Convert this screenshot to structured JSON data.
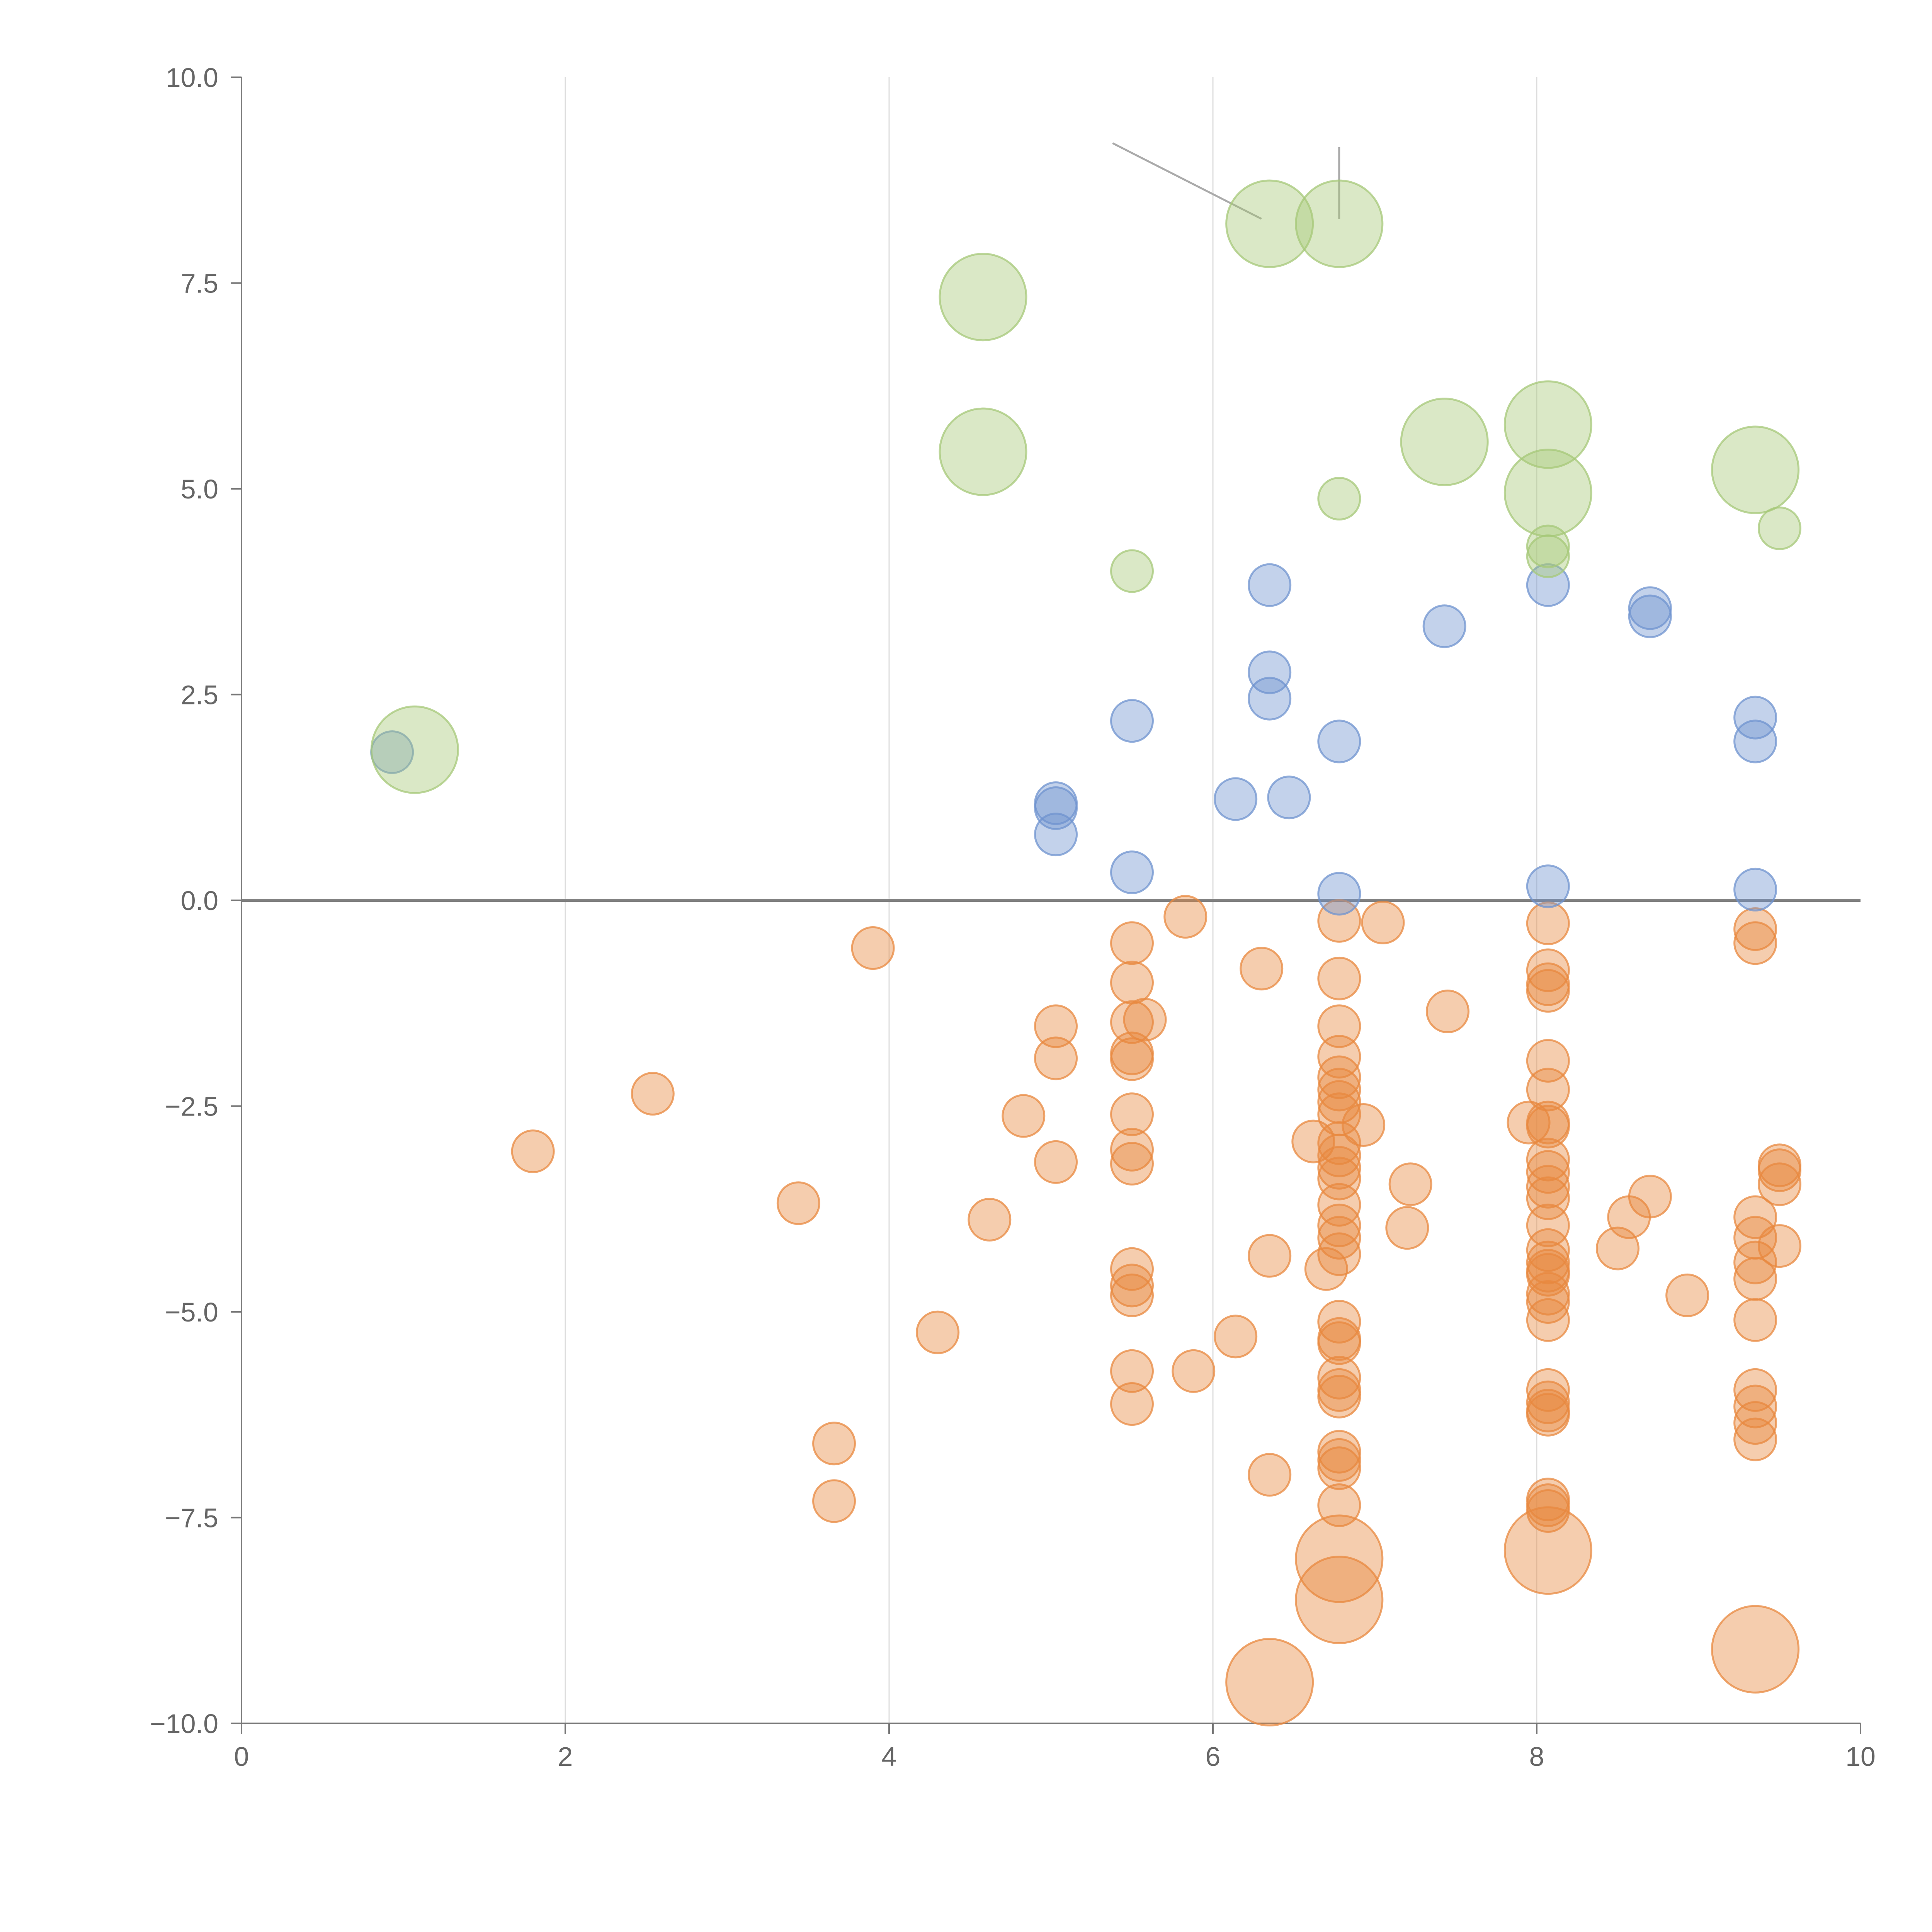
{
  "chart_data": {
    "type": "scatter",
    "title": "",
    "xlabel": "",
    "ylabel": "",
    "xlim": [
      0,
      10
    ],
    "ylim": [
      -10,
      10
    ],
    "grid": "vertical",
    "x_ticks": [
      0,
      2,
      4,
      6,
      8,
      10
    ],
    "x_tick_labels": [
      "0",
      "2",
      "4",
      "6",
      "8",
      "10"
    ],
    "y_ticks": [
      10,
      7.5,
      5,
      2.5,
      0,
      -2.5,
      -5,
      -7.5,
      -10
    ],
    "y_tick_labels": [
      "10.0",
      "7.5",
      "5.0",
      "2.5",
      "0.0",
      "−2.5",
      "−5.0",
      "−7.5",
      "−10.0"
    ],
    "series": [
      {
        "name": "orange",
        "color": "#e8883f",
        "points": [
          [
            1.8,
            -3.05,
            1
          ],
          [
            2.54,
            -2.35,
            1
          ],
          [
            3.44,
            -3.68,
            1
          ],
          [
            3.66,
            -6.6,
            1
          ],
          [
            3.66,
            -7.3,
            1
          ],
          [
            3.9,
            -0.58,
            1
          ],
          [
            4.3,
            -5.25,
            1
          ],
          [
            4.62,
            -3.88,
            1
          ],
          [
            4.83,
            -2.62,
            1
          ],
          [
            5.03,
            -1.53,
            1
          ],
          [
            5.03,
            -1.92,
            1
          ],
          [
            5.03,
            -3.18,
            1
          ],
          [
            5.5,
            -0.52,
            1
          ],
          [
            5.5,
            -1.0,
            1
          ],
          [
            5.5,
            -1.48,
            1
          ],
          [
            5.5,
            -1.86,
            1
          ],
          [
            5.5,
            -1.93,
            1
          ],
          [
            5.5,
            -2.6,
            1
          ],
          [
            5.5,
            -3.03,
            1
          ],
          [
            5.5,
            -3.2,
            1
          ],
          [
            5.5,
            -4.48,
            1
          ],
          [
            5.5,
            -4.68,
            1
          ],
          [
            5.5,
            -4.8,
            1
          ],
          [
            5.5,
            -5.72,
            1
          ],
          [
            5.5,
            -6.12,
            1
          ],
          [
            5.58,
            -1.45,
            1
          ],
          [
            5.83,
            -0.2,
            1
          ],
          [
            5.88,
            -5.72,
            1
          ],
          [
            6.14,
            -5.3,
            1
          ],
          [
            6.3,
            -0.83,
            1
          ],
          [
            6.35,
            -4.32,
            1
          ],
          [
            6.35,
            -6.98,
            1
          ],
          [
            6.35,
            -9.5,
            2.5
          ],
          [
            6.62,
            -2.93,
            1
          ],
          [
            6.7,
            -4.48,
            1
          ],
          [
            6.78,
            -0.25,
            1
          ],
          [
            6.78,
            -0.95,
            1
          ],
          [
            6.78,
            -1.53,
            1
          ],
          [
            6.78,
            -1.9,
            1
          ],
          [
            6.78,
            -2.15,
            1
          ],
          [
            6.78,
            -2.3,
            1
          ],
          [
            6.78,
            -2.45,
            1
          ],
          [
            6.78,
            -2.6,
            1
          ],
          [
            6.78,
            -2.95,
            1
          ],
          [
            6.78,
            -3.1,
            1
          ],
          [
            6.78,
            -3.25,
            1
          ],
          [
            6.78,
            -3.38,
            1
          ],
          [
            6.78,
            -3.7,
            1
          ],
          [
            6.78,
            -3.95,
            1
          ],
          [
            6.78,
            -4.1,
            1
          ],
          [
            6.78,
            -4.3,
            1
          ],
          [
            6.78,
            -5.12,
            1
          ],
          [
            6.78,
            -5.33,
            1
          ],
          [
            6.78,
            -5.38,
            1
          ],
          [
            6.78,
            -5.8,
            1
          ],
          [
            6.78,
            -5.95,
            1
          ],
          [
            6.78,
            -6.03,
            1
          ],
          [
            6.78,
            -6.7,
            1
          ],
          [
            6.78,
            -6.8,
            1
          ],
          [
            6.78,
            -6.9,
            1
          ],
          [
            6.78,
            -7.35,
            1
          ],
          [
            6.78,
            -8.0,
            2.5
          ],
          [
            6.78,
            -8.5,
            2.5
          ],
          [
            6.93,
            -2.73,
            1
          ],
          [
            7.05,
            -0.27,
            1
          ],
          [
            7.2,
            -3.98,
            1
          ],
          [
            7.22,
            -3.45,
            1
          ],
          [
            7.45,
            -1.35,
            1
          ],
          [
            7.95,
            -2.7,
            1
          ],
          [
            8.07,
            -0.28,
            1
          ],
          [
            8.07,
            -0.85,
            1
          ],
          [
            8.07,
            -1.02,
            1
          ],
          [
            8.07,
            -1.1,
            1
          ],
          [
            8.07,
            -1.95,
            1
          ],
          [
            8.07,
            -2.3,
            1
          ],
          [
            8.07,
            -2.7,
            1
          ],
          [
            8.07,
            -2.75,
            1
          ],
          [
            8.07,
            -3.15,
            1
          ],
          [
            8.07,
            -3.3,
            1
          ],
          [
            8.07,
            -3.48,
            1
          ],
          [
            8.07,
            -3.62,
            1
          ],
          [
            8.07,
            -3.95,
            1
          ],
          [
            8.07,
            -4.25,
            1
          ],
          [
            8.07,
            -4.4,
            1
          ],
          [
            8.07,
            -4.5,
            1
          ],
          [
            8.07,
            -4.55,
            1
          ],
          [
            8.07,
            -4.78,
            1
          ],
          [
            8.07,
            -4.88,
            1
          ],
          [
            8.07,
            -5.1,
            1
          ],
          [
            8.07,
            -5.95,
            1
          ],
          [
            8.07,
            -6.1,
            1
          ],
          [
            8.07,
            -6.2,
            1
          ],
          [
            8.07,
            -6.25,
            1
          ],
          [
            8.07,
            -7.28,
            1
          ],
          [
            8.07,
            -7.35,
            1
          ],
          [
            8.07,
            -7.42,
            1
          ],
          [
            8.07,
            -7.9,
            2.5
          ],
          [
            8.5,
            -4.23,
            1
          ],
          [
            8.57,
            -3.85,
            1
          ],
          [
            8.7,
            -3.6,
            1
          ],
          [
            8.93,
            -4.8,
            1
          ],
          [
            9.35,
            -0.35,
            1
          ],
          [
            9.35,
            -0.52,
            1
          ],
          [
            9.35,
            -3.85,
            1
          ],
          [
            9.35,
            -4.1,
            1
          ],
          [
            9.35,
            -4.4,
            1
          ],
          [
            9.35,
            -4.6,
            1
          ],
          [
            9.35,
            -5.1,
            1
          ],
          [
            9.35,
            -5.95,
            1
          ],
          [
            9.35,
            -6.15,
            1
          ],
          [
            9.35,
            -6.35,
            1
          ],
          [
            9.35,
            -6.55,
            1
          ],
          [
            9.35,
            -9.1,
            2.5
          ],
          [
            9.5,
            -3.22,
            1
          ],
          [
            9.5,
            -3.28,
            1
          ],
          [
            9.5,
            -3.45,
            1
          ],
          [
            9.5,
            -4.2,
            1
          ]
        ]
      },
      {
        "name": "blue",
        "color": "#6f93cf",
        "points": [
          [
            0.93,
            1.8,
            1
          ],
          [
            5.03,
            1.18,
            1
          ],
          [
            5.03,
            1.12,
            1
          ],
          [
            5.03,
            0.8,
            1
          ],
          [
            5.5,
            2.18,
            1
          ],
          [
            5.5,
            0.34,
            1
          ],
          [
            6.14,
            1.23,
            1
          ],
          [
            6.35,
            3.83,
            1
          ],
          [
            6.35,
            2.77,
            1
          ],
          [
            6.35,
            2.45,
            1
          ],
          [
            6.47,
            1.25,
            1
          ],
          [
            6.78,
            1.93,
            1
          ],
          [
            6.78,
            0.08,
            1
          ],
          [
            7.43,
            3.33,
            1
          ],
          [
            8.07,
            3.83,
            1
          ],
          [
            8.07,
            0.17,
            1
          ],
          [
            8.7,
            3.55,
            1
          ],
          [
            8.7,
            3.45,
            1
          ],
          [
            9.35,
            2.22,
            1
          ],
          [
            9.35,
            1.93,
            1
          ],
          [
            9.35,
            0.13,
            1
          ]
        ]
      },
      {
        "name": "green",
        "color": "#a6c878",
        "points": [
          [
            1.07,
            1.83,
            2.5
          ],
          [
            4.58,
            7.33,
            2.5
          ],
          [
            4.58,
            5.45,
            2.5
          ],
          [
            5.5,
            4.0,
            1
          ],
          [
            6.35,
            8.22,
            2.5
          ],
          [
            6.78,
            8.22,
            2.5
          ],
          [
            6.78,
            4.88,
            1
          ],
          [
            7.43,
            5.57,
            2.5
          ],
          [
            8.07,
            5.78,
            2.5
          ],
          [
            8.07,
            4.95,
            2.5
          ],
          [
            8.07,
            4.3,
            1
          ],
          [
            8.07,
            4.18,
            1
          ],
          [
            9.35,
            5.23,
            2.5
          ],
          [
            9.5,
            4.52,
            1
          ]
        ]
      }
    ]
  }
}
